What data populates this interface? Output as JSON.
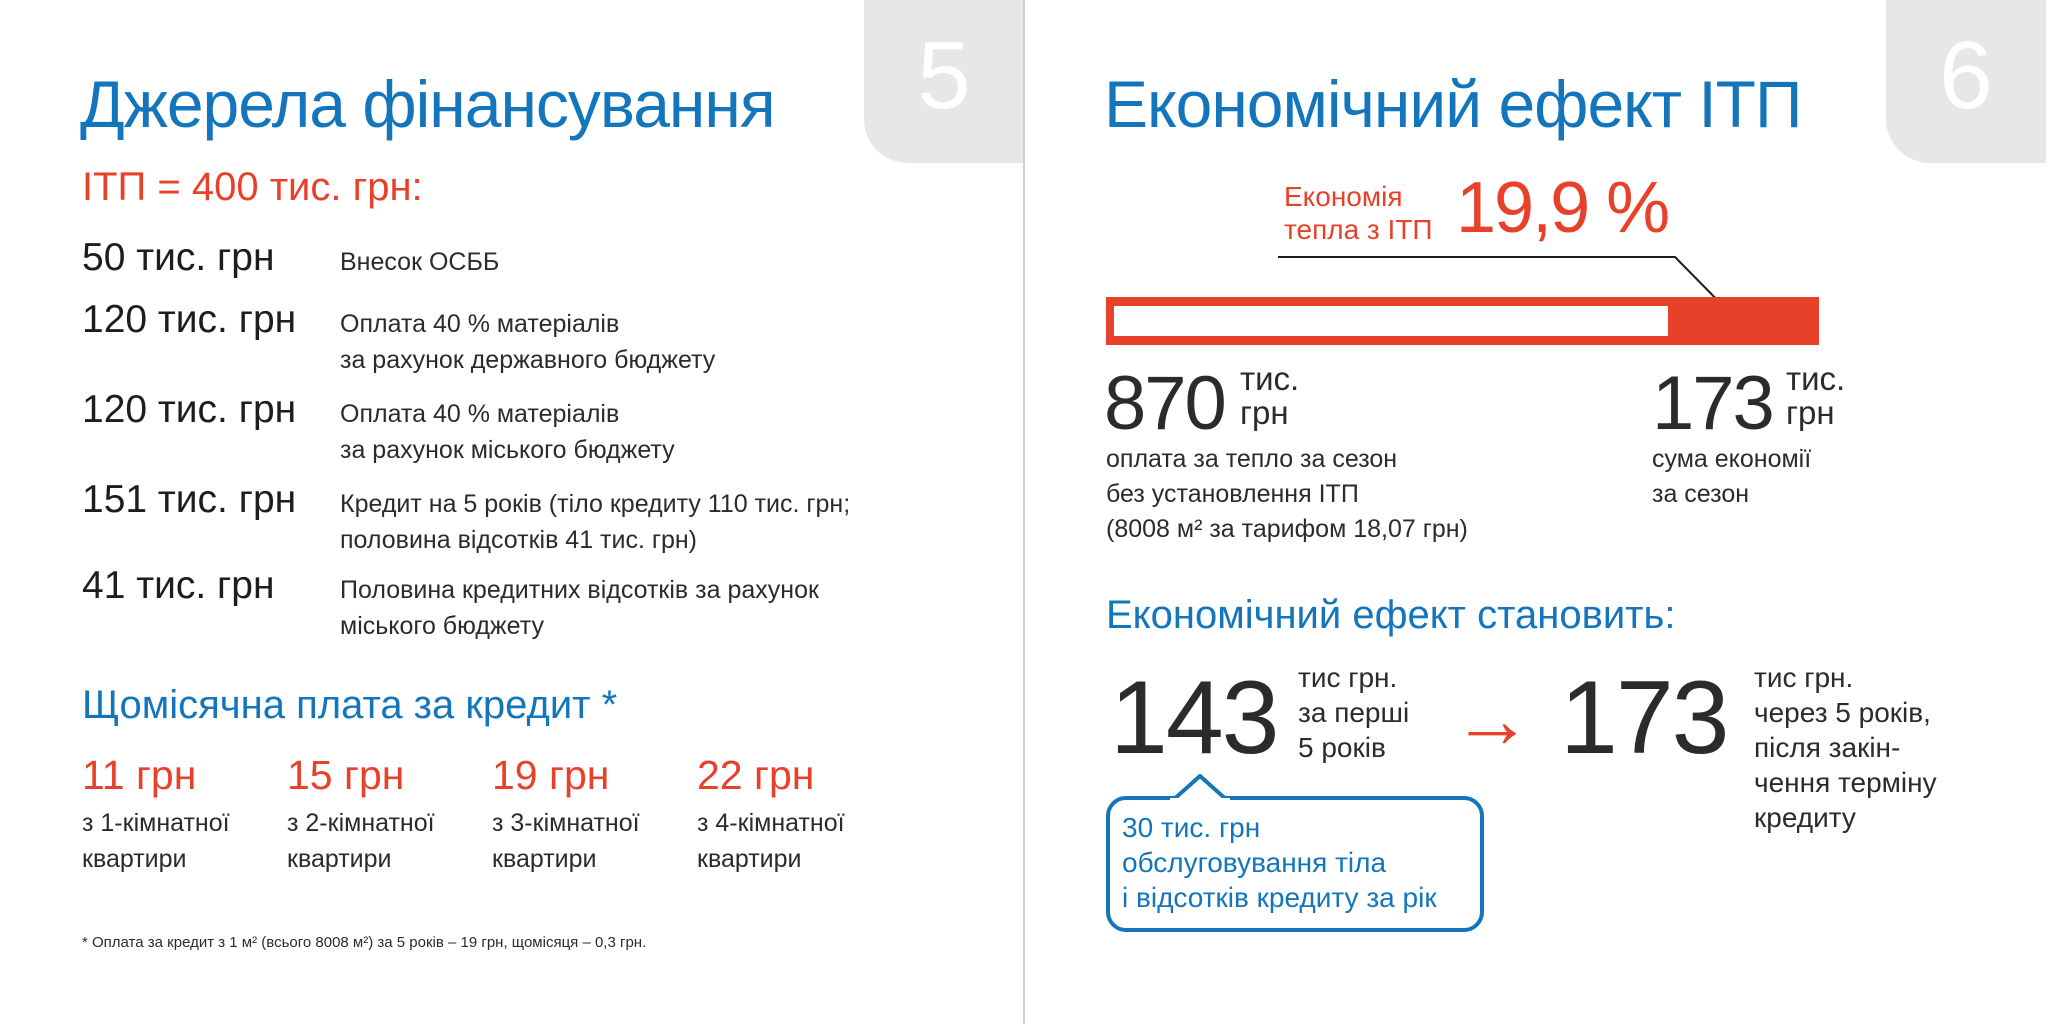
{
  "left": {
    "page_number": "5",
    "title": "Джерела фінансування",
    "subtitle": "ІТП = 400 тис. грн:",
    "funding": [
      {
        "amount": "50 тис. грн",
        "desc": [
          "Внесок ОСББ"
        ]
      },
      {
        "amount": "120 тис. грн",
        "desc": [
          "Оплата 40 % матеріалів",
          "за рахунок державного бюджету"
        ]
      },
      {
        "amount": "120 тис. грн",
        "desc": [
          "Оплата 40 % матеріалів",
          "за рахунок міського бюджету"
        ]
      },
      {
        "amount": "151 тис. грн",
        "desc": [
          "Кредит на 5 років (тіло кредиту 110 тис. грн;",
          "половина відсотків 41 тис. грн)"
        ]
      },
      {
        "amount": "41 тис. грн",
        "desc": [
          "Половина кредитних відсотків за рахунок",
          "міського бюджету"
        ]
      }
    ],
    "monthly_title": "Щомісячна плата за кредит *",
    "monthly": [
      {
        "price": "11 грн",
        "apt": [
          "з 1-кімнатної",
          "квартири"
        ]
      },
      {
        "price": "15 грн",
        "apt": [
          "з 2-кімнатної",
          "квартири"
        ]
      },
      {
        "price": "19 грн",
        "apt": [
          "з 3-кімнатної",
          "квартири"
        ]
      },
      {
        "price": "22 грн",
        "apt": [
          "з 4-кімнатної",
          "квартири"
        ]
      }
    ],
    "footnote": "* Оплата за кредит з 1 м² (всього 8008 м²) за 5 років – 19 грн, щомісяця – 0,3 грн."
  },
  "right": {
    "page_number": "6",
    "title": "Економічний ефект ІТП",
    "savings_label": [
      "Економія",
      "тепла з ІТП"
    ],
    "savings_value": "19,9 %",
    "savings_fraction": 0.199,
    "total": {
      "number": "870",
      "unit": [
        "тис.",
        "грн"
      ],
      "caption": [
        "оплата за тепло за сезон",
        "без установлення ІТП",
        "(8008 м² за тарифом 18,07 грн)"
      ]
    },
    "saving": {
      "number": "173",
      "unit": [
        "тис.",
        "грн"
      ],
      "caption": [
        "сума економії",
        "за сезон"
      ]
    },
    "effect_title": "Економічний ефект становить:",
    "effect_first": {
      "number": "143",
      "caption": [
        "тис грн.",
        "за перші",
        "5 років"
      ]
    },
    "effect_second": {
      "number": "173",
      "caption": [
        "тис грн.",
        "через 5 років,",
        "після закін-",
        "чення терміну",
        "кредиту"
      ]
    },
    "arrow_glyph": "→",
    "bubble": [
      "30 тис. грн",
      "обслуговування тіла",
      "і відсотків кредиту за рік"
    ]
  },
  "colors": {
    "blue": "#1376bd",
    "red": "#e8412a",
    "tab": "#e7e7e8"
  }
}
